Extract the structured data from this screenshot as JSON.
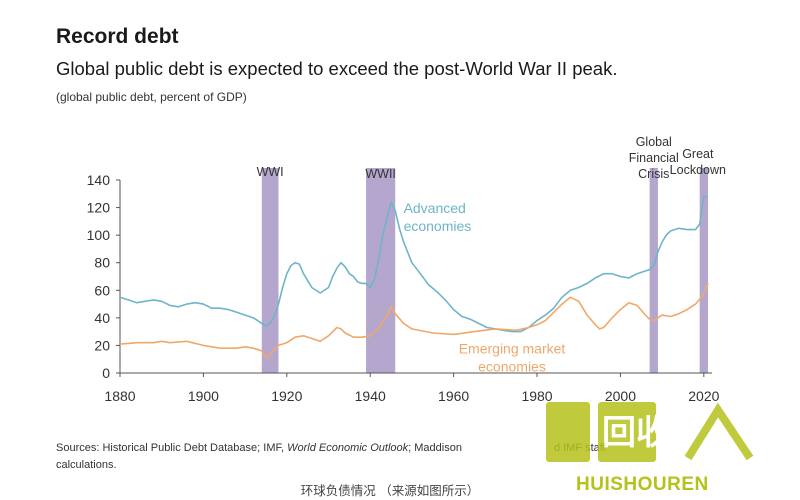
{
  "header": {
    "title": "Record debt",
    "subtitle": "Global public debt is expected to exceed the post-World War II peak.",
    "unit_note": "(global public debt, percent of GDP)"
  },
  "footer": {
    "source_prefix": "Sources: Historical Public Debt Database; IMF, ",
    "source_italic": "World Economic Outlook",
    "source_rest": "; Maddison",
    "source_tail": "d IMF staff",
    "source_line2": "calculations.",
    "caption": "环球负债情况 （来源如图所示）"
  },
  "watermark": {
    "text": "HUISHOUREN",
    "logo_text": "回收"
  },
  "colors": {
    "advanced": "#6fb4c8",
    "emerging": "#f0a86a",
    "shade": "#a897c6",
    "axis": "#555555"
  },
  "chart_data": {
    "type": "line",
    "title": "Record debt",
    "subtitle": "Global public debt is expected to exceed the post-World War II peak.",
    "ylabel": "(global public debt, percent of GDP)",
    "xlim": [
      1880,
      2021
    ],
    "ylim": [
      0,
      140
    ],
    "xticks": [
      1880,
      1900,
      1920,
      1940,
      1960,
      1980,
      2000,
      2020
    ],
    "yticks": [
      0,
      20,
      40,
      60,
      80,
      100,
      120,
      140
    ],
    "grid": false,
    "shaded_periods": [
      {
        "label": "WWI",
        "start": 1914,
        "end": 1918
      },
      {
        "label": "WWII",
        "start": 1939,
        "end": 1946
      },
      {
        "label": "Global Financial Crisis",
        "start": 2007,
        "end": 2009
      },
      {
        "label": "Great Lockdown",
        "start": 2019,
        "end": 2021
      }
    ],
    "series": [
      {
        "name": "Advanced economies",
        "x": [
          1880,
          1882,
          1884,
          1886,
          1888,
          1890,
          1892,
          1894,
          1896,
          1898,
          1900,
          1902,
          1904,
          1906,
          1908,
          1910,
          1912,
          1913,
          1914,
          1915,
          1916,
          1917,
          1918,
          1919,
          1920,
          1921,
          1922,
          1923,
          1924,
          1926,
          1928,
          1930,
          1931,
          1932,
          1933,
          1934,
          1935,
          1936,
          1937,
          1938,
          1939,
          1940,
          1941,
          1942,
          1943,
          1944,
          1945,
          1946,
          1947,
          1948,
          1950,
          1952,
          1954,
          1956,
          1958,
          1960,
          1962,
          1964,
          1966,
          1968,
          1970,
          1972,
          1974,
          1976,
          1978,
          1980,
          1982,
          1984,
          1986,
          1988,
          1990,
          1992,
          1994,
          1996,
          1998,
          2000,
          2002,
          2004,
          2006,
          2007,
          2008,
          2009,
          2010,
          2011,
          2012,
          2014,
          2016,
          2018,
          2019,
          2020,
          2021
        ],
        "values": [
          55,
          53,
          51,
          52,
          53,
          52,
          49,
          48,
          50,
          51,
          50,
          47,
          47,
          46,
          44,
          42,
          40,
          38,
          36,
          34,
          36,
          41,
          50,
          62,
          72,
          78,
          80,
          79,
          72,
          62,
          58,
          62,
          70,
          76,
          80,
          77,
          72,
          70,
          66,
          65,
          65,
          62,
          68,
          82,
          100,
          112,
          124,
          118,
          105,
          95,
          80,
          72,
          64,
          59,
          53,
          46,
          41,
          39,
          36,
          33,
          32,
          31,
          30,
          30,
          33,
          38,
          42,
          47,
          55,
          60,
          62,
          65,
          69,
          72,
          72,
          70,
          69,
          72,
          74,
          75,
          78,
          88,
          95,
          100,
          103,
          105,
          104,
          104,
          108,
          128,
          128
        ]
      },
      {
        "name": "Emerging market economies",
        "x": [
          1880,
          1884,
          1888,
          1890,
          1892,
          1896,
          1900,
          1904,
          1908,
          1910,
          1912,
          1914,
          1915,
          1916,
          1917,
          1918,
          1920,
          1922,
          1924,
          1926,
          1928,
          1930,
          1932,
          1933,
          1934,
          1936,
          1938,
          1940,
          1942,
          1944,
          1945,
          1946,
          1948,
          1950,
          1955,
          1960,
          1965,
          1970,
          1975,
          1978,
          1980,
          1982,
          1984,
          1986,
          1988,
          1990,
          1992,
          1994,
          1995,
          1996,
          1998,
          2000,
          2002,
          2004,
          2006,
          2007,
          2008,
          2010,
          2012,
          2014,
          2016,
          2018,
          2020,
          2021
        ],
        "values": [
          21,
          22,
          22,
          23,
          22,
          23,
          20,
          18,
          18,
          19,
          18,
          16,
          11,
          13,
          17,
          20,
          22,
          26,
          27,
          25,
          23,
          27,
          33,
          32,
          29,
          26,
          26,
          27,
          32,
          42,
          48,
          43,
          36,
          32,
          29,
          28,
          30,
          32,
          31,
          33,
          35,
          38,
          44,
          50,
          55,
          52,
          42,
          35,
          32,
          33,
          40,
          46,
          51,
          49,
          42,
          39,
          38,
          42,
          41,
          43,
          46,
          50,
          57,
          65
        ]
      }
    ],
    "annotations": [
      {
        "text": "Advanced\neconomies",
        "series": "Advanced economies"
      },
      {
        "text": "Emerging market\neconomies",
        "series": "Emerging market economies"
      }
    ]
  }
}
